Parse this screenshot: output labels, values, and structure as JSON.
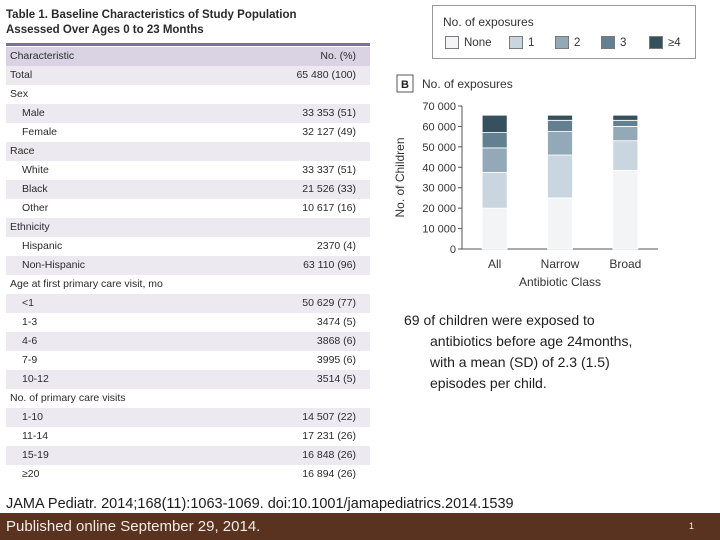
{
  "table": {
    "title_line1": "Table 1. Baseline Characteristics of Study Population",
    "title_line2": "Assessed Over Ages 0 to 23 Months",
    "header": {
      "characteristic": "Characteristic",
      "number": "No. (%)"
    },
    "rows": [
      {
        "label": "Total",
        "value": "65 480 (100)",
        "level": 0
      },
      {
        "label": "Sex",
        "value": "",
        "level": 0
      },
      {
        "label": "Male",
        "value": "33 353 (51)",
        "level": 1
      },
      {
        "label": "Female",
        "value": "32 127 (49)",
        "level": 1
      },
      {
        "label": "Race",
        "value": "",
        "level": 0
      },
      {
        "label": "White",
        "value": "33 337 (51)",
        "level": 1
      },
      {
        "label": "Black",
        "value": "21 526 (33)",
        "level": 1
      },
      {
        "label": "Other",
        "value": "10 617 (16)",
        "level": 1
      },
      {
        "label": "Ethnicity",
        "value": "",
        "level": 0
      },
      {
        "label": "Hispanic",
        "value": "2370 (4)",
        "level": 1
      },
      {
        "label": "Non-Hispanic",
        "value": "63 110 (96)",
        "level": 1
      },
      {
        "label": "Age at first primary care visit, mo",
        "value": "",
        "level": 0
      },
      {
        "label": "<1",
        "value": "50 629 (77)",
        "level": 1
      },
      {
        "label": "1-3",
        "value": "3474 (5)",
        "level": 1
      },
      {
        "label": "4-6",
        "value": "3868 (6)",
        "level": 1
      },
      {
        "label": "7-9",
        "value": "3995 (6)",
        "level": 1
      },
      {
        "label": "10-12",
        "value": "3514 (5)",
        "level": 1
      },
      {
        "label": "No. of primary care visits",
        "value": "",
        "level": 0
      },
      {
        "label": "1-10",
        "value": "14 507 (22)",
        "level": 1
      },
      {
        "label": "11-14",
        "value": "17 231 (26)",
        "level": 1
      },
      {
        "label": "15-19",
        "value": "16 848 (26)",
        "level": 1
      },
      {
        "label": "≥20",
        "value": "16 894 (26)",
        "level": 1
      }
    ]
  },
  "legend": {
    "title": "No. of exposures",
    "items": [
      {
        "label": "None",
        "color": "#f2f4f6"
      },
      {
        "label": "1",
        "color": "#c9d6df"
      },
      {
        "label": "2",
        "color": "#93a9b8"
      },
      {
        "label": "3",
        "color": "#62808f"
      },
      {
        "label": "≥4",
        "color": "#36505e"
      }
    ]
  },
  "chart_data": {
    "type": "bar",
    "stacked": true,
    "panel_label": "B",
    "title": "No. of exposures",
    "xlabel": "Antibiotic Class",
    "ylabel": "No. of Children",
    "ylim": [
      0,
      70000
    ],
    "yticks": [
      0,
      10000,
      20000,
      30000,
      40000,
      50000,
      60000,
      70000
    ],
    "ytick_labels": [
      "0",
      "10 000",
      "20 000",
      "30 000",
      "40 000",
      "50 000",
      "60 000",
      "70 000"
    ],
    "categories": [
      "All",
      "Narrow",
      "Broad"
    ],
    "series": [
      {
        "name": "None",
        "values": [
          20000,
          25000,
          38500
        ]
      },
      {
        "name": "1",
        "values": [
          17500,
          21000,
          14500
        ]
      },
      {
        "name": "2",
        "values": [
          12000,
          11500,
          7000
        ]
      },
      {
        "name": "3",
        "values": [
          7500,
          5500,
          3000
        ]
      },
      {
        "name": "≥4",
        "values": [
          8500,
          2500,
          2500
        ]
      }
    ]
  },
  "note": {
    "line1": "69 of children were exposed to",
    "line2": "antibiotics before age 24months,",
    "line3": "with a mean (SD) of 2.3 (1.5)",
    "line4": "episodes per child."
  },
  "citation": "JAMA Pediatr. 2014;168(11):1063-1069. doi:10.1001/jamapediatrics.2014.1539",
  "footer": {
    "published": "Published online September 29, 2014.",
    "page_number": "1",
    "bar_color": "#5a3220"
  }
}
